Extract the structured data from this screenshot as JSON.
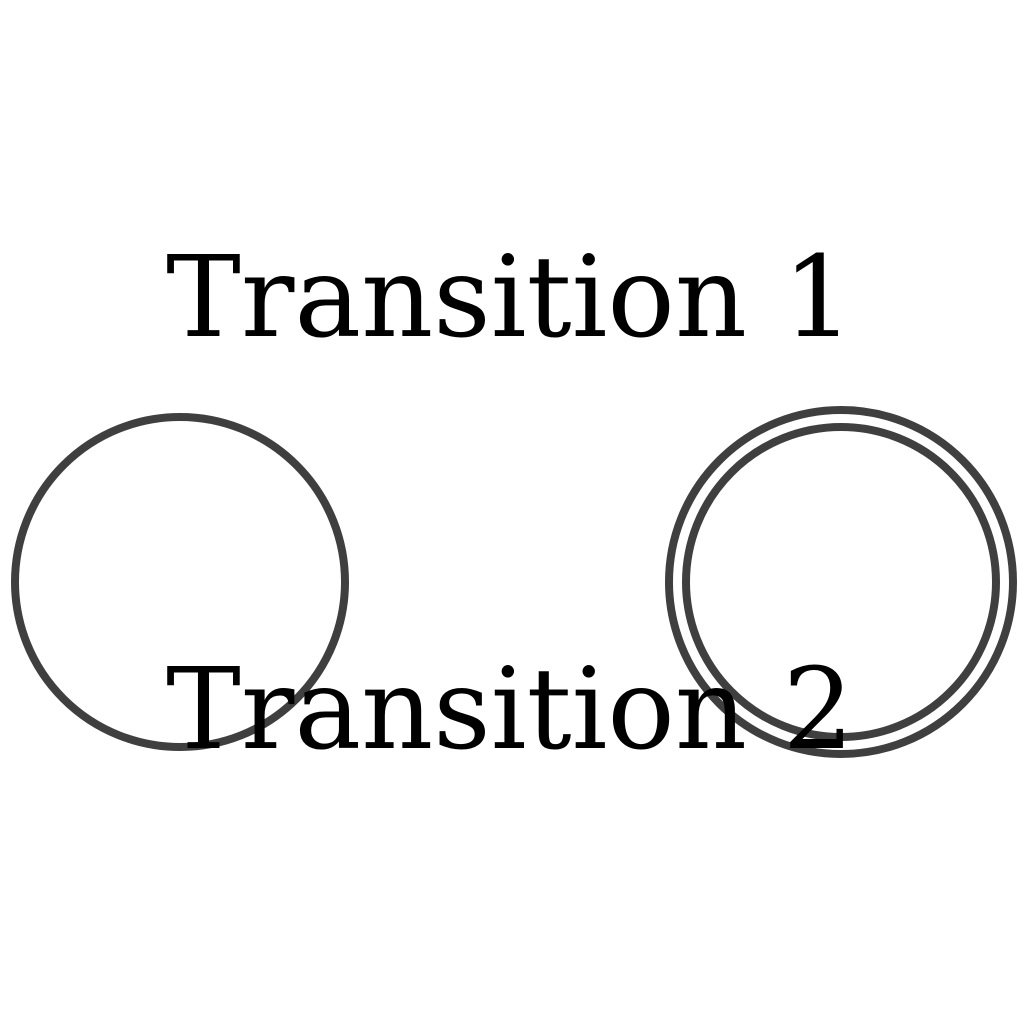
{
  "diagram": {
    "states": [
      {
        "kind": "normal"
      },
      {
        "kind": "accepting"
      }
    ],
    "transitions": [
      {
        "label": "Transition 1"
      },
      {
        "label": "Transition 2"
      }
    ]
  },
  "colors": {
    "state_stroke": "#3f3f3f",
    "label_text": "#000000",
    "background": "#ffffff"
  }
}
